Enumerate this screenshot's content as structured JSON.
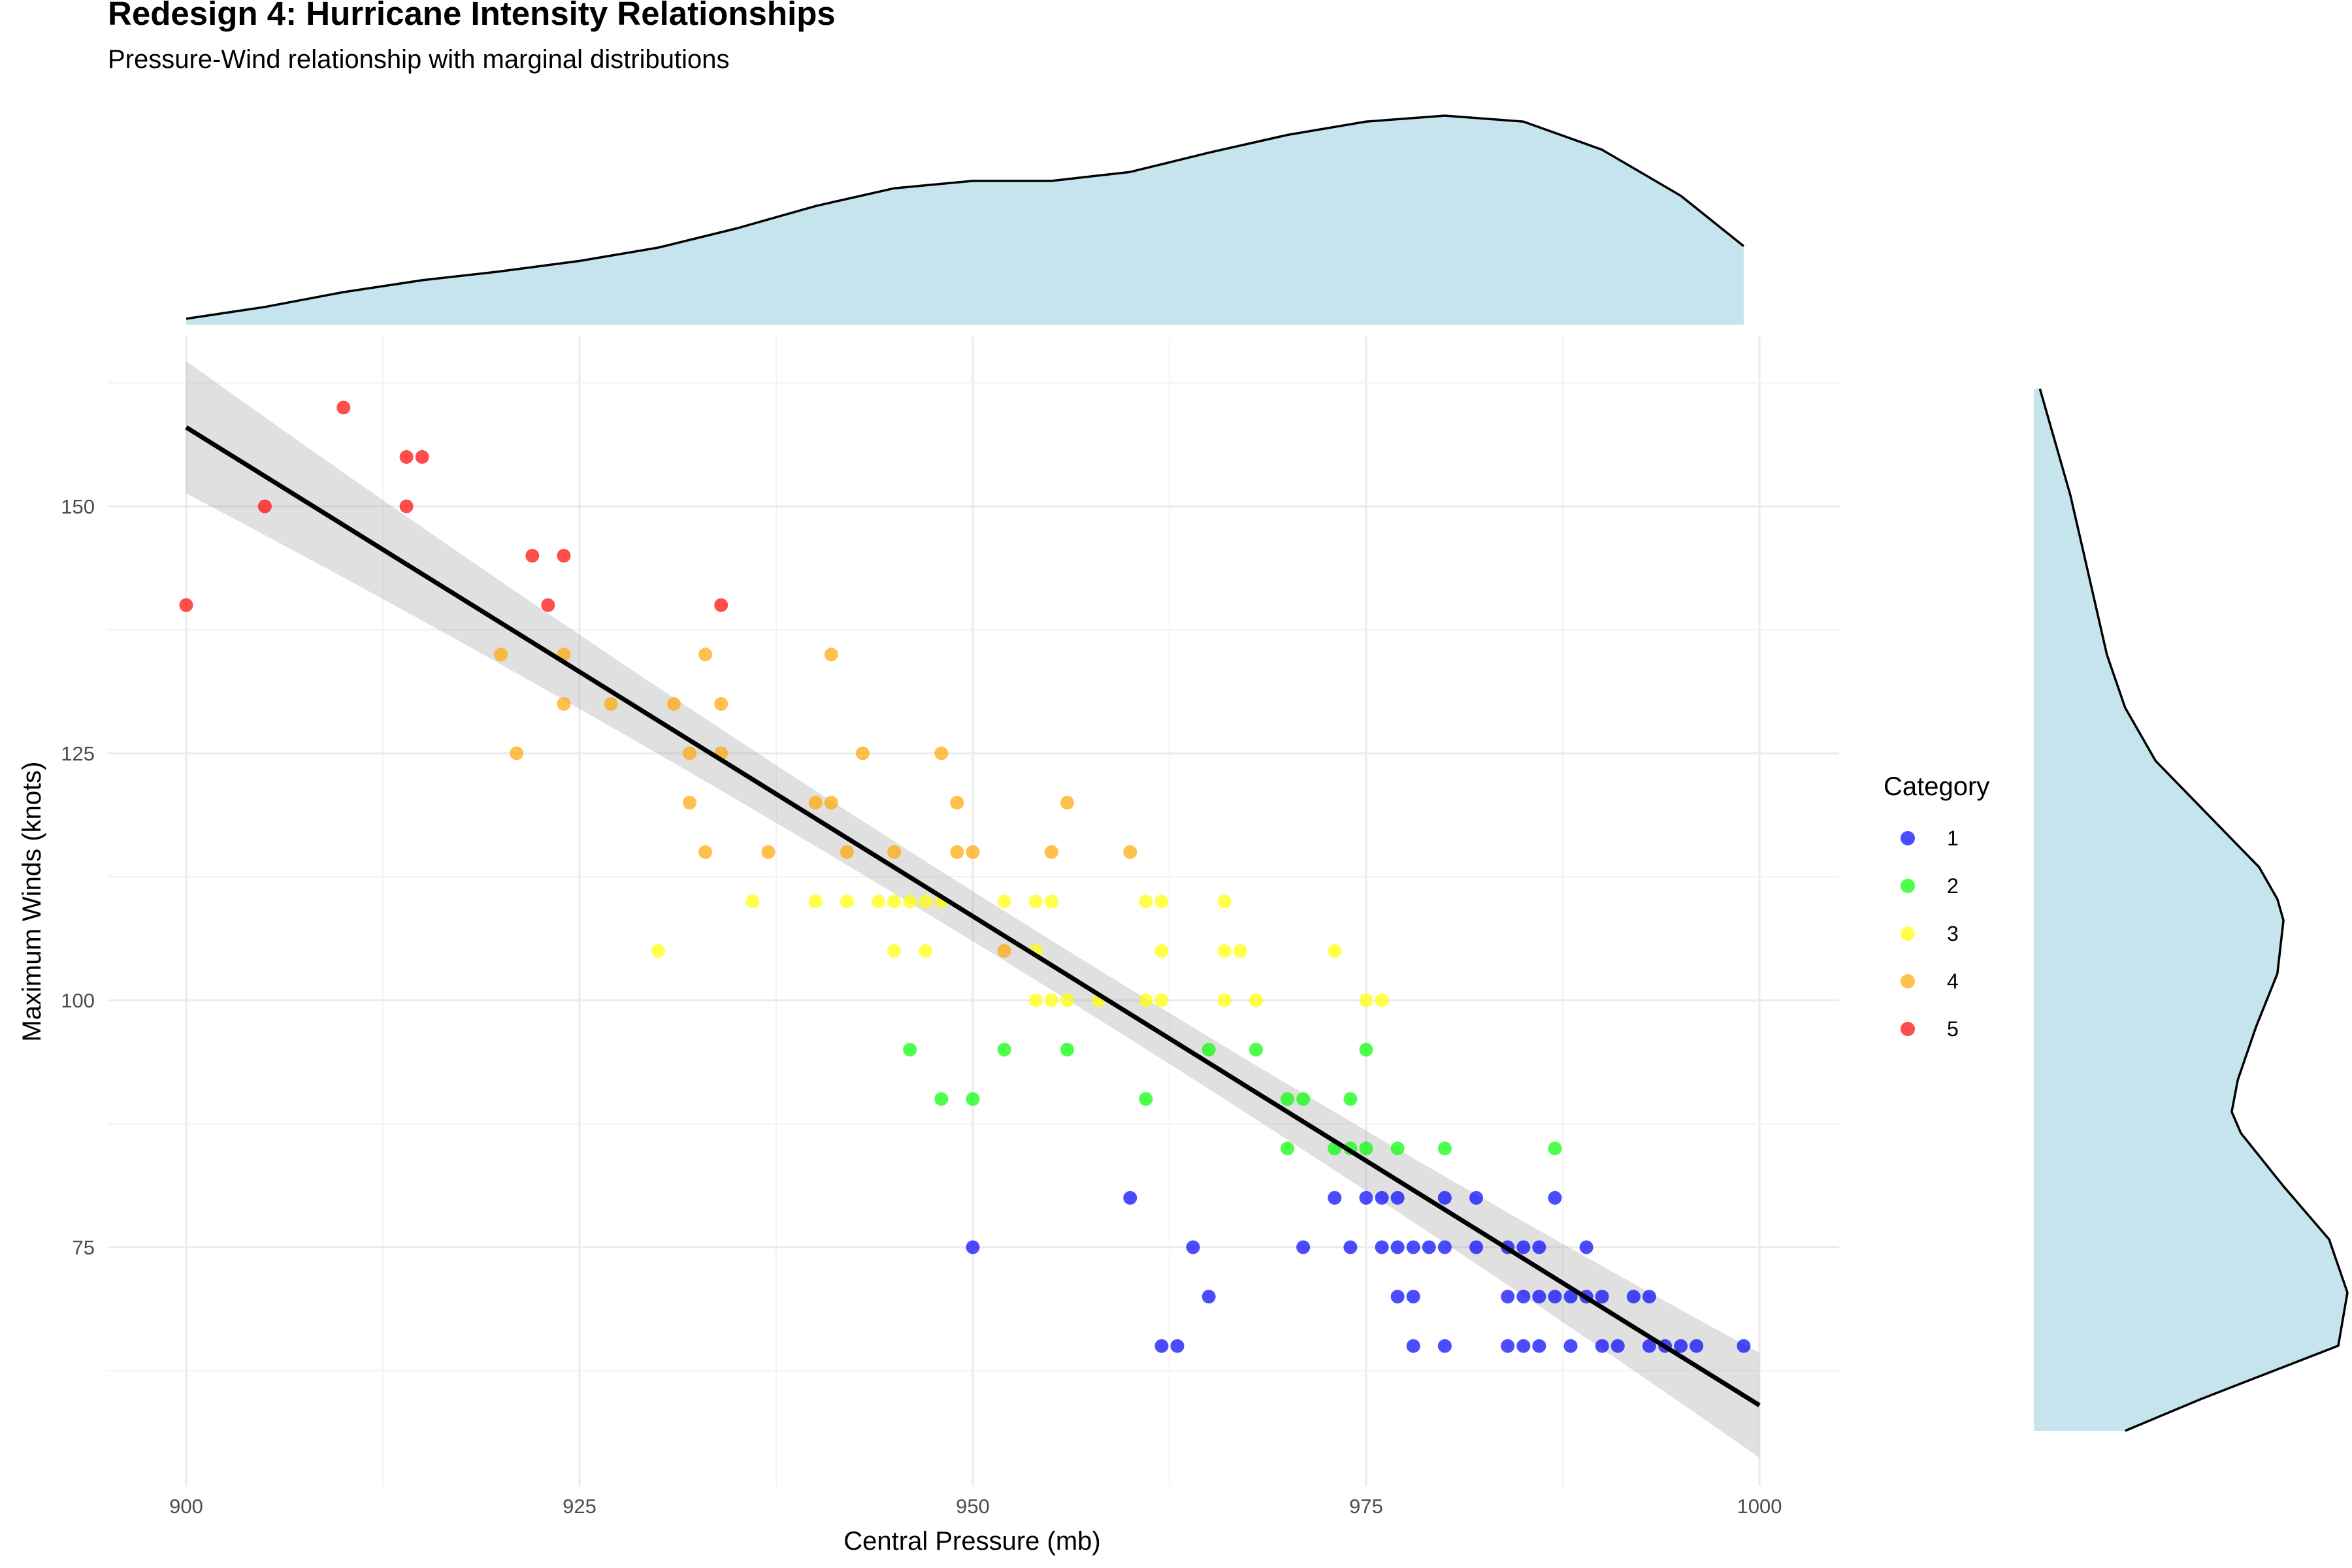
{
  "title": "Redesign 4: Hurricane Intensity Relationships",
  "subtitle": "Pressure-Wind relationship with marginal distributions",
  "chart_data": {
    "type": "scatter",
    "xlabel": "Central Pressure (mb)",
    "ylabel": "Maximum Winds (knots)",
    "xlim": [
      895,
      1004
    ],
    "ylim": [
      48,
      166
    ],
    "xticks": [
      900,
      925,
      950,
      975,
      1000
    ],
    "yticks": [
      75,
      100,
      125,
      150
    ],
    "grid": true,
    "legend": {
      "title": "Category",
      "position": "right",
      "items": [
        {
          "label": "1",
          "color": "#0000ff"
        },
        {
          "label": "2",
          "color": "#00ff00"
        },
        {
          "label": "3",
          "color": "#ffff00"
        },
        {
          "label": "4",
          "color": "#ffa500"
        },
        {
          "label": "5",
          "color": "#ff0000"
        }
      ]
    },
    "series": [
      {
        "name": "5",
        "color": "#ff0000",
        "points": [
          [
            900,
            140
          ],
          [
            905,
            150
          ],
          [
            910,
            160
          ],
          [
            914,
            155
          ],
          [
            915,
            155
          ],
          [
            914,
            150
          ],
          [
            922,
            145
          ],
          [
            923,
            140
          ],
          [
            924,
            145
          ],
          [
            934,
            140
          ]
        ]
      },
      {
        "name": "4",
        "color": "#ffa500",
        "points": [
          [
            920,
            135
          ],
          [
            921,
            125
          ],
          [
            924,
            135
          ],
          [
            924,
            130
          ],
          [
            927,
            130
          ],
          [
            931,
            130
          ],
          [
            932,
            125
          ],
          [
            932,
            120
          ],
          [
            933,
            135
          ],
          [
            933,
            115
          ],
          [
            934,
            130
          ],
          [
            934,
            125
          ],
          [
            937,
            115
          ],
          [
            940,
            120
          ],
          [
            941,
            120
          ],
          [
            941,
            135
          ],
          [
            942,
            115
          ],
          [
            943,
            125
          ],
          [
            945,
            115
          ],
          [
            948,
            125
          ],
          [
            949,
            120
          ],
          [
            949,
            115
          ],
          [
            950,
            115
          ],
          [
            952,
            105
          ],
          [
            955,
            115
          ],
          [
            956,
            120
          ],
          [
            960,
            115
          ]
        ]
      },
      {
        "name": "3",
        "color": "#ffff00",
        "points": [
          [
            930,
            105
          ],
          [
            936,
            110
          ],
          [
            940,
            110
          ],
          [
            942,
            110
          ],
          [
            944,
            110
          ],
          [
            945,
            110
          ],
          [
            945,
            105
          ],
          [
            946,
            110
          ],
          [
            947,
            105
          ],
          [
            947,
            110
          ],
          [
            948,
            110
          ],
          [
            952,
            110
          ],
          [
            954,
            110
          ],
          [
            954,
            105
          ],
          [
            954,
            100
          ],
          [
            955,
            100
          ],
          [
            955,
            110
          ],
          [
            956,
            100
          ],
          [
            958,
            100
          ],
          [
            961,
            110
          ],
          [
            961,
            100
          ],
          [
            962,
            110
          ],
          [
            962,
            105
          ],
          [
            962,
            100
          ],
          [
            966,
            110
          ],
          [
            966,
            105
          ],
          [
            966,
            100
          ],
          [
            967,
            105
          ],
          [
            968,
            100
          ],
          [
            973,
            105
          ],
          [
            975,
            100
          ],
          [
            976,
            100
          ]
        ]
      },
      {
        "name": "2",
        "color": "#00ff00",
        "points": [
          [
            946,
            95
          ],
          [
            948,
            90
          ],
          [
            950,
            90
          ],
          [
            952,
            95
          ],
          [
            956,
            95
          ],
          [
            961,
            90
          ],
          [
            965,
            95
          ],
          [
            968,
            95
          ],
          [
            970,
            90
          ],
          [
            970,
            85
          ],
          [
            971,
            90
          ],
          [
            973,
            85
          ],
          [
            974,
            90
          ],
          [
            974,
            85
          ],
          [
            975,
            95
          ],
          [
            975,
            85
          ],
          [
            977,
            85
          ],
          [
            980,
            85
          ],
          [
            987,
            85
          ]
        ]
      },
      {
        "name": "1",
        "color": "#0000ff",
        "points": [
          [
            950,
            75
          ],
          [
            960,
            80
          ],
          [
            962,
            65
          ],
          [
            963,
            65
          ],
          [
            964,
            75
          ],
          [
            965,
            70
          ],
          [
            971,
            75
          ],
          [
            973,
            80
          ],
          [
            974,
            75
          ],
          [
            975,
            80
          ],
          [
            976,
            80
          ],
          [
            976,
            75
          ],
          [
            977,
            80
          ],
          [
            977,
            75
          ],
          [
            977,
            70
          ],
          [
            978,
            75
          ],
          [
            978,
            70
          ],
          [
            978,
            65
          ],
          [
            979,
            75
          ],
          [
            980,
            80
          ],
          [
            980,
            75
          ],
          [
            980,
            65
          ],
          [
            982,
            80
          ],
          [
            982,
            75
          ],
          [
            984,
            75
          ],
          [
            984,
            70
          ],
          [
            984,
            65
          ],
          [
            985,
            75
          ],
          [
            985,
            70
          ],
          [
            985,
            65
          ],
          [
            986,
            75
          ],
          [
            986,
            70
          ],
          [
            986,
            65
          ],
          [
            987,
            80
          ],
          [
            987,
            70
          ],
          [
            988,
            70
          ],
          [
            988,
            65
          ],
          [
            989,
            75
          ],
          [
            989,
            70
          ],
          [
            990,
            70
          ],
          [
            990,
            65
          ],
          [
            991,
            65
          ],
          [
            992,
            70
          ],
          [
            993,
            70
          ],
          [
            993,
            65
          ],
          [
            994,
            65
          ],
          [
            995,
            65
          ],
          [
            996,
            65
          ],
          [
            999,
            65
          ]
        ]
      }
    ],
    "trend_line": {
      "x": [
        900,
        1000
      ],
      "y": [
        158,
        59
      ]
    },
    "marginal_x_density": {
      "x": [
        900,
        905,
        910,
        915,
        920,
        925,
        930,
        935,
        940,
        945,
        950,
        955,
        960,
        965,
        970,
        975,
        980,
        985,
        990,
        995,
        999
      ],
      "density": [
        0.04,
        0.12,
        0.22,
        0.3,
        0.36,
        0.43,
        0.52,
        0.65,
        0.8,
        0.92,
        0.97,
        0.97,
        1.03,
        1.16,
        1.28,
        1.37,
        1.41,
        1.37,
        1.18,
        0.87,
        0.53
      ]
    },
    "marginal_y_density": {
      "y": [
        160,
        155,
        150,
        145,
        140,
        135,
        130,
        125,
        120,
        115,
        112,
        110,
        105,
        100,
        95,
        92,
        90,
        85,
        80,
        75,
        70,
        65,
        62
      ],
      "density": [
        0.02,
        0.07,
        0.12,
        0.16,
        0.2,
        0.24,
        0.3,
        0.4,
        0.57,
        0.74,
        0.8,
        0.82,
        0.8,
        0.73,
        0.67,
        0.65,
        0.68,
        0.82,
        0.97,
        1.03,
        1.0,
        0.55,
        0.3
      ]
    }
  }
}
